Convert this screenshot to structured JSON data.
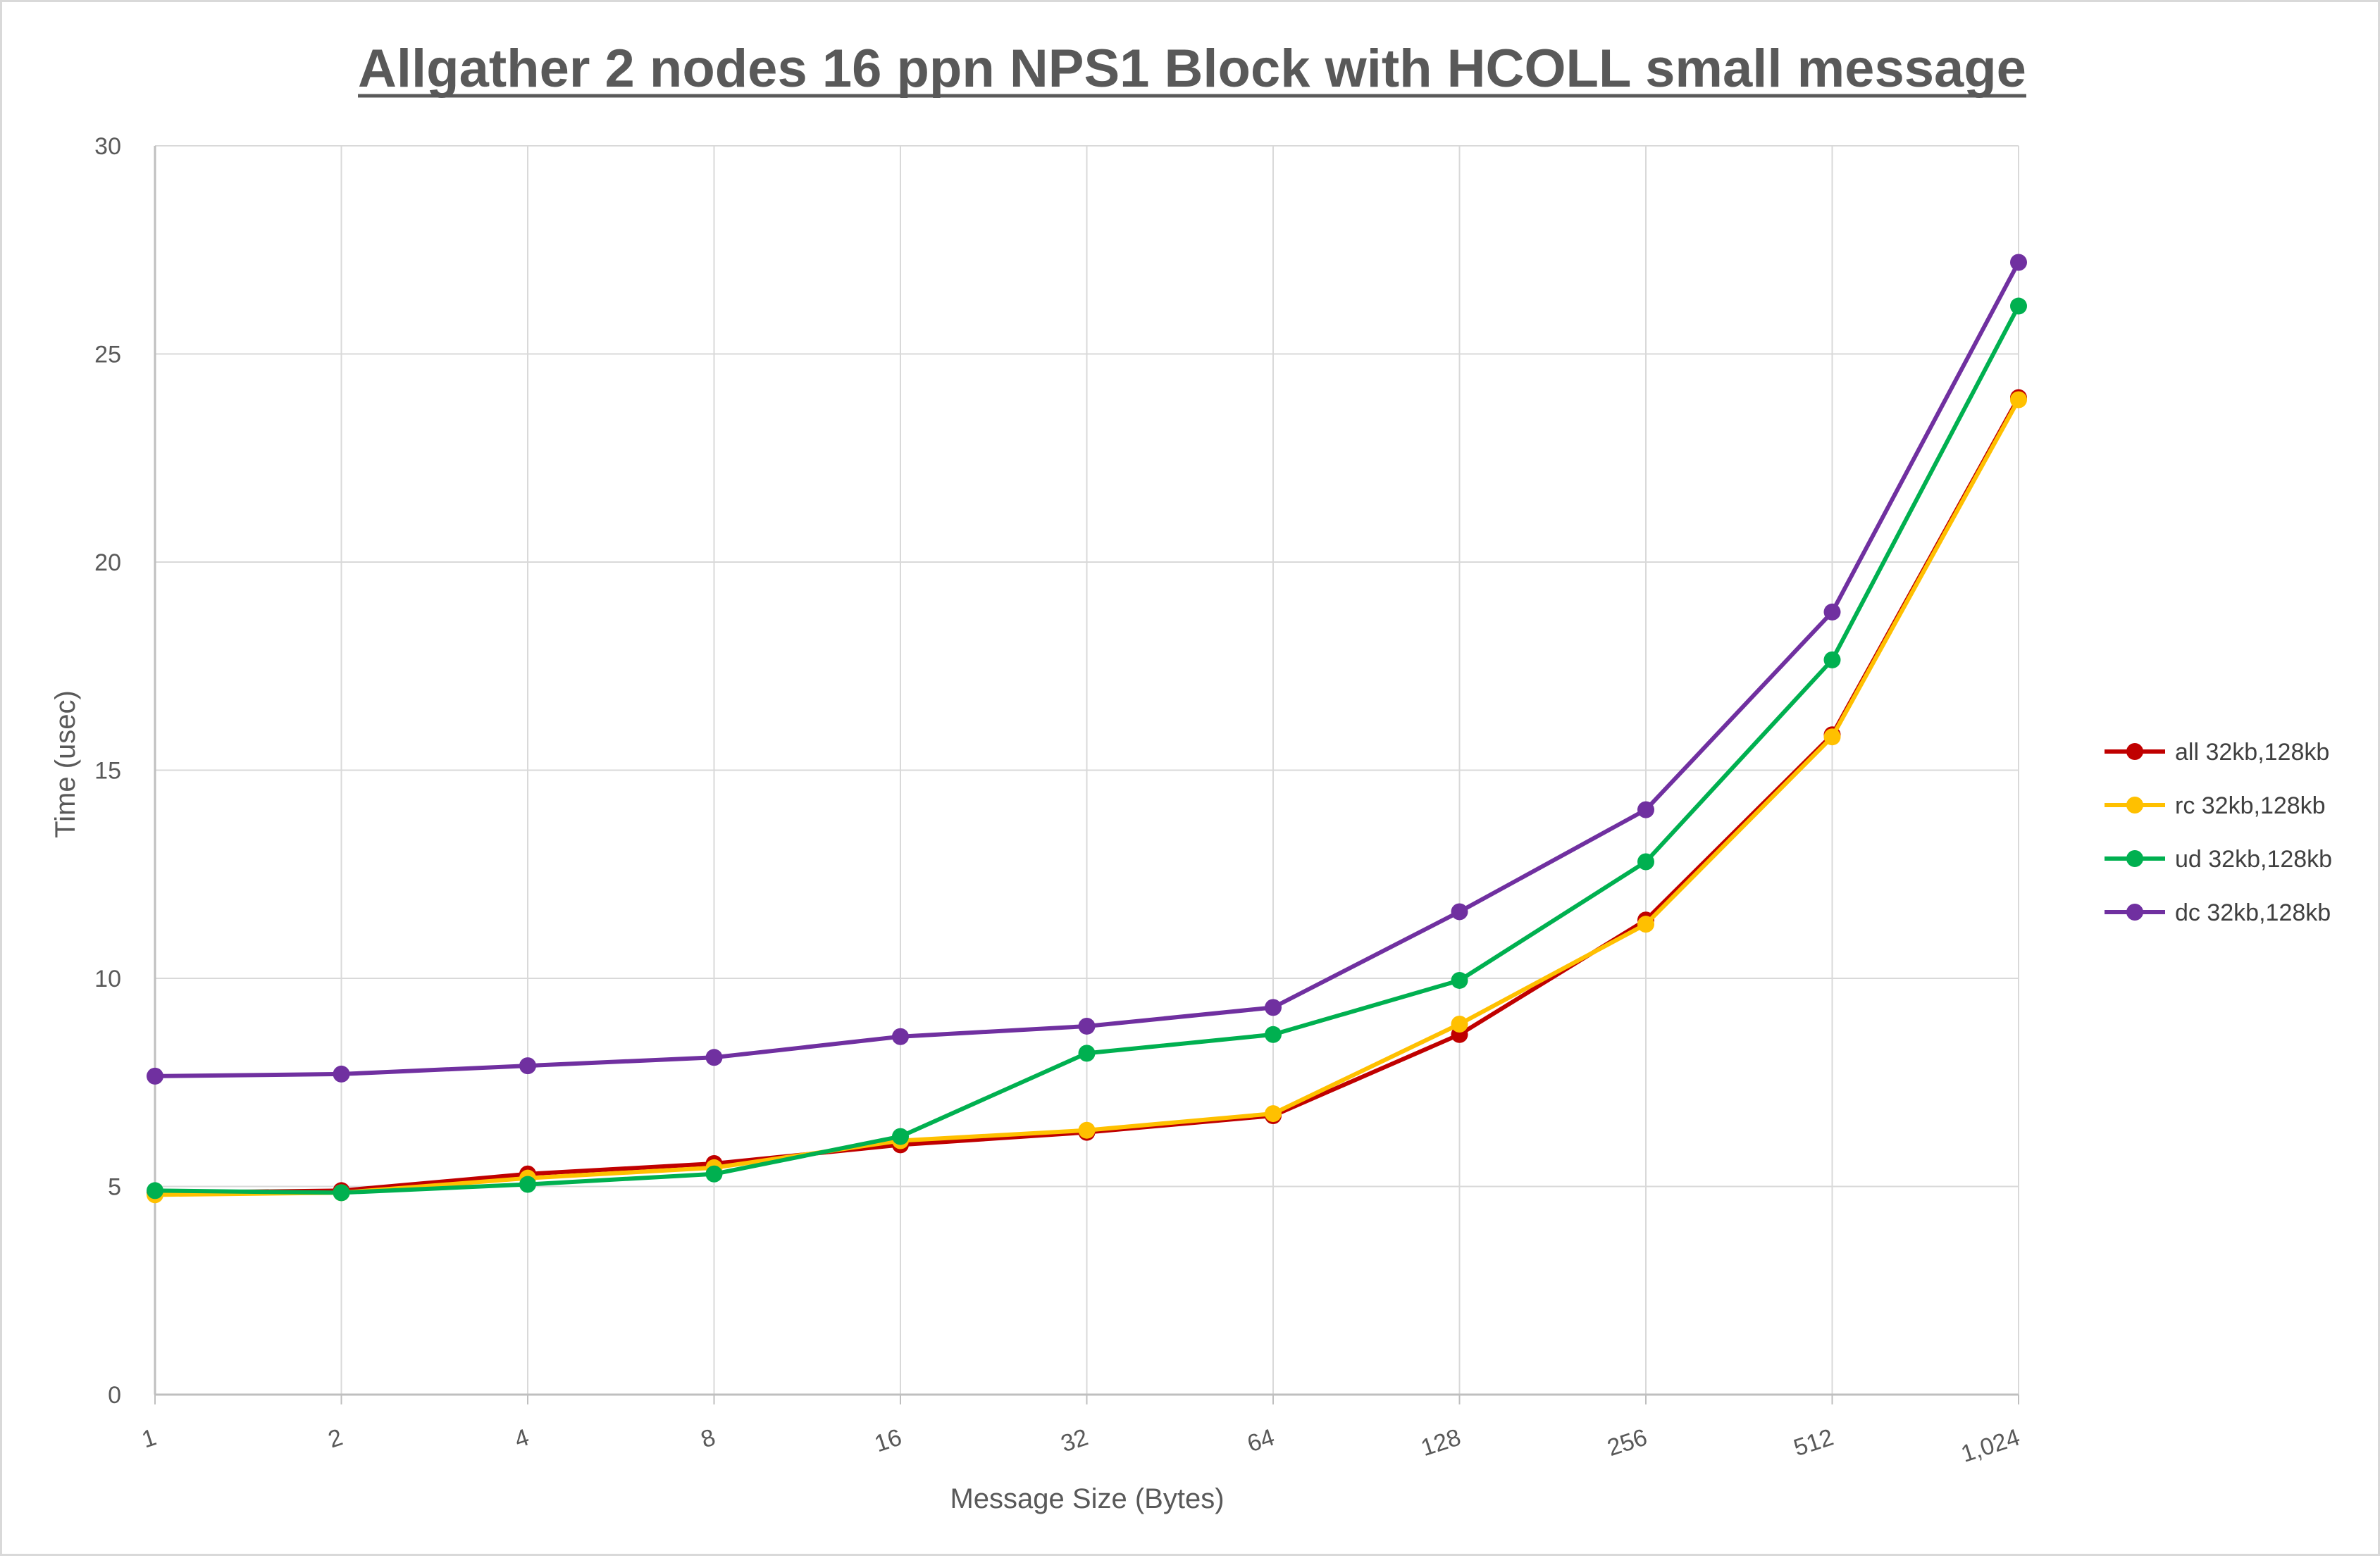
{
  "chart_data": {
    "type": "line",
    "title": "Allgather 2 nodes 16 ppn NPS1 Block with HCOLL small message",
    "xlabel": "Message Size (Bytes)",
    "ylabel": "Time (usec)",
    "categories": [
      "1",
      "2",
      "4",
      "8",
      "16",
      "32",
      "64",
      "128",
      "256",
      "512",
      "1,024"
    ],
    "ylim": [
      0,
      30
    ],
    "yticks": [
      "0",
      "5",
      "10",
      "15",
      "20",
      "25",
      "30"
    ],
    "grid": true,
    "legend_position": "right",
    "series": [
      {
        "name": "all 32kb,128kb",
        "color": "#c00000",
        "values": [
          4.85,
          4.9,
          5.3,
          5.55,
          6.0,
          6.3,
          6.7,
          8.65,
          11.4,
          15.85,
          23.95
        ]
      },
      {
        "name": "rc 32kb,128kb",
        "color": "#ffc000",
        "values": [
          4.8,
          4.85,
          5.2,
          5.45,
          6.1,
          6.35,
          6.75,
          8.9,
          11.3,
          15.8,
          23.9
        ]
      },
      {
        "name": "ud 32kb,128kb",
        "color": "#00b050",
        "values": [
          4.9,
          4.85,
          5.05,
          5.3,
          6.2,
          8.2,
          8.65,
          9.95,
          12.8,
          17.65,
          26.15
        ]
      },
      {
        "name": "dc 32kb,128kb",
        "color": "#7030a0",
        "values": [
          7.65,
          7.7,
          7.9,
          8.1,
          8.6,
          8.85,
          9.3,
          11.6,
          14.05,
          18.8,
          27.2
        ]
      }
    ]
  }
}
